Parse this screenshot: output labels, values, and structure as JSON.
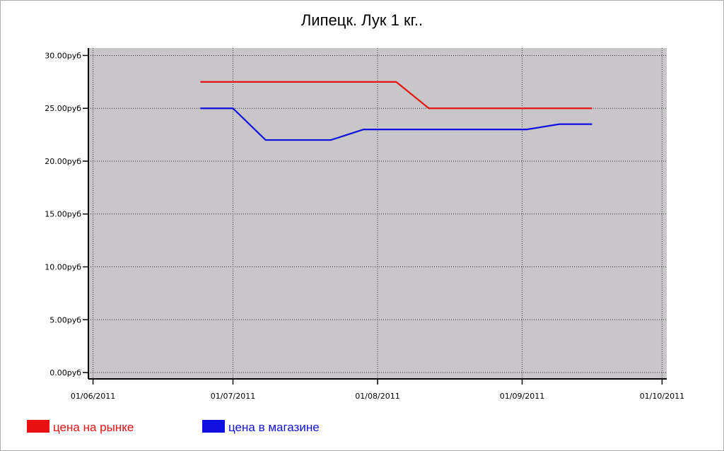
{
  "chart_data": {
    "type": "line",
    "title": "Липецк. Лук 1 кг..",
    "x": [
      "2011-06-24",
      "2011-07-01",
      "2011-07-08",
      "2011-07-15",
      "2011-07-22",
      "2011-07-29",
      "2011-08-05",
      "2011-08-12",
      "2011-08-19",
      "2011-08-26",
      "2011-09-02",
      "2011-09-09",
      "2011-09-16"
    ],
    "series": [
      {
        "name": "цена на рынке",
        "color": "#e81010",
        "values": [
          27.5,
          27.5,
          27.5,
          27.5,
          27.5,
          27.5,
          27.5,
          25,
          25,
          25,
          25,
          25,
          25
        ]
      },
      {
        "name": "цена в магазине",
        "color": "#1010e0",
        "values": [
          25,
          25,
          22,
          22,
          22,
          23,
          23,
          23,
          23,
          23,
          23,
          23.5,
          23.5
        ]
      }
    ],
    "xlim": [
      "2011-05-31",
      "2011-10-02"
    ],
    "xticks": [
      {
        "value": "2011-06-01",
        "label": "01/06/2011"
      },
      {
        "value": "2011-07-01",
        "label": "01/07/2011"
      },
      {
        "value": "2011-08-01",
        "label": "01/08/2011"
      },
      {
        "value": "2011-09-01",
        "label": "01/09/2011"
      },
      {
        "value": "2011-10-01",
        "label": "01/10/2011"
      }
    ],
    "ylim": [
      -0.6,
      30.7
    ],
    "yticks": [
      {
        "value": 0,
        "label": "0.00руб"
      },
      {
        "value": 5,
        "label": "5.00руб"
      },
      {
        "value": 10,
        "label": "10.00руб"
      },
      {
        "value": 15,
        "label": "15.00руб"
      },
      {
        "value": 20,
        "label": "20.00руб"
      },
      {
        "value": 25,
        "label": "25.00руб"
      },
      {
        "value": 30,
        "label": "30.00руб"
      }
    ],
    "grid": true,
    "plot_background": "#c8c6c8",
    "legend": "bottom-left"
  }
}
